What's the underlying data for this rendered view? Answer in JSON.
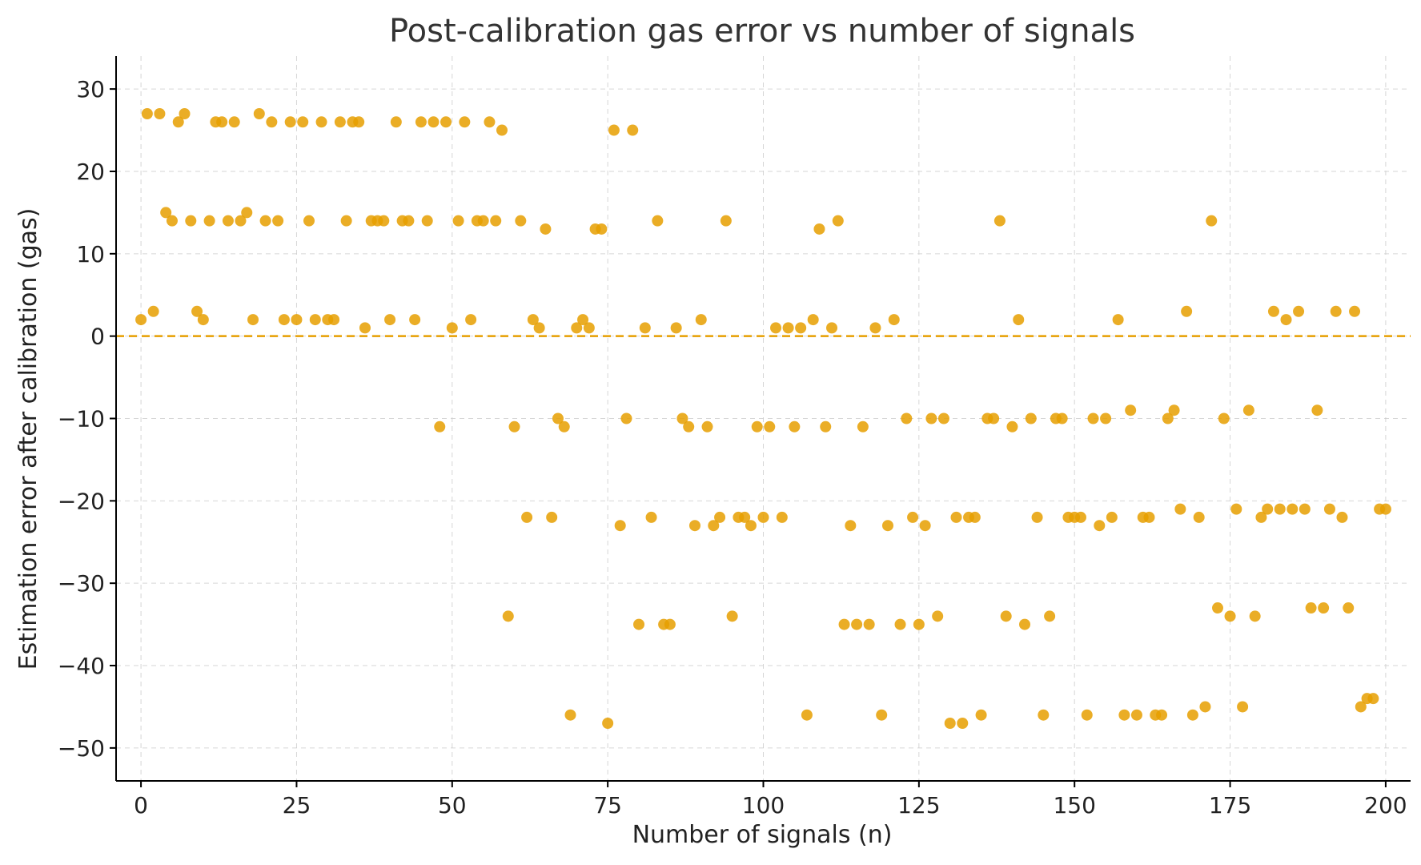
{
  "chart_data": {
    "type": "scatter",
    "title": "Post-calibration gas error vs number of signals",
    "xlabel": "Number of signals (n)",
    "ylabel": "Estimation error after calibration (gas)",
    "xlim": [
      -4,
      204
    ],
    "ylim": [
      -54,
      34
    ],
    "xticks": [
      0,
      25,
      50,
      75,
      100,
      125,
      150,
      175,
      200
    ],
    "yticks": [
      30,
      20,
      10,
      0,
      -10,
      -20,
      -30,
      -40,
      -50
    ],
    "grid": true,
    "reference_line": {
      "y": 0,
      "style": "dashed"
    },
    "colors": {
      "points": "#E69F00",
      "reference_line": "#E69F00"
    },
    "x": [
      0,
      1,
      2,
      3,
      4,
      5,
      6,
      7,
      8,
      9,
      10,
      11,
      12,
      13,
      14,
      15,
      16,
      17,
      18,
      19,
      20,
      21,
      22,
      23,
      24,
      25,
      26,
      27,
      28,
      29,
      30,
      31,
      32,
      33,
      34,
      35,
      36,
      37,
      38,
      39,
      40,
      41,
      42,
      43,
      44,
      45,
      46,
      47,
      48,
      49,
      50,
      51,
      52,
      53,
      54,
      55,
      56,
      57,
      58,
      59,
      60,
      61,
      62,
      63,
      64,
      65,
      66,
      67,
      68,
      69,
      70,
      71,
      72,
      73,
      74,
      75,
      76,
      77,
      78,
      79,
      80,
      81,
      82,
      83,
      84,
      85,
      86,
      87,
      88,
      89,
      90,
      91,
      92,
      93,
      94,
      95,
      96,
      97,
      98,
      99,
      100,
      101,
      102,
      103,
      104,
      105,
      106,
      107,
      108,
      109,
      110,
      111,
      112,
      113,
      114,
      115,
      116,
      117,
      118,
      119,
      120,
      121,
      122,
      123,
      124,
      125,
      126,
      127,
      128,
      129,
      130,
      131,
      132,
      133,
      134,
      135,
      136,
      137,
      138,
      139,
      140,
      141,
      142,
      143,
      144,
      145,
      146,
      147,
      148,
      149,
      150,
      151,
      152,
      153,
      154,
      155,
      156,
      157,
      158,
      159,
      160,
      161,
      162,
      163,
      164,
      165,
      166,
      167,
      168,
      169,
      170,
      171,
      172,
      173,
      174,
      175,
      176,
      177,
      178,
      179,
      180,
      181,
      182,
      183,
      184,
      185,
      186,
      187,
      188,
      189,
      190,
      191,
      192,
      193,
      194,
      195,
      196,
      197,
      198,
      199,
      200
    ],
    "y": [
      2,
      27,
      3,
      27,
      15,
      14,
      26,
      27,
      14,
      3,
      2,
      14,
      26,
      26,
      14,
      26,
      14,
      15,
      2,
      27,
      14,
      26,
      14,
      2,
      26,
      2,
      26,
      14,
      2,
      26,
      2,
      2,
      26,
      14,
      26,
      26,
      1,
      14,
      14,
      14,
      2,
      26,
      14,
      14,
      2,
      26,
      14,
      26,
      -11,
      26,
      1,
      14,
      26,
      2,
      14,
      14,
      26,
      14,
      25,
      -34,
      -11,
      14,
      -22,
      2,
      1,
      13,
      -22,
      -10,
      -11,
      -46,
      1,
      2,
      1,
      13,
      13,
      -47,
      25,
      -23,
      -10,
      25,
      -35,
      1,
      -22,
      14,
      -35,
      -35,
      1,
      -10,
      -11,
      -23,
      2,
      -11,
      -23,
      -22,
      14,
      -34,
      -22,
      -22,
      -23,
      -11,
      -22,
      -11,
      1,
      -22,
      1,
      -11,
      1,
      -46,
      2,
      13,
      -11,
      1,
      14,
      -35,
      -23,
      -35,
      -11,
      -35,
      1,
      -46,
      -23,
      2,
      -35,
      -10,
      -22,
      -35,
      -23,
      -10,
      -34,
      -10,
      -47,
      -22,
      -47,
      -22,
      -22,
      -46,
      -10,
      -10,
      14,
      -34,
      -11,
      2,
      -35,
      -10,
      -22,
      -46,
      -34,
      -10,
      -10,
      -22,
      -22,
      -22,
      -46,
      -10,
      -23,
      -10,
      -22,
      2,
      -46,
      -9,
      -46,
      -22,
      -22,
      -46,
      -46,
      -10,
      -9,
      -21,
      3,
      -46,
      -22,
      -45,
      14,
      -33,
      -10,
      -34,
      -21,
      -45,
      -9,
      -34,
      -22,
      -21,
      3,
      -21,
      2,
      -21,
      3,
      -21,
      -33,
      -9,
      -33,
      -21,
      3,
      -22,
      -33,
      3,
      -45,
      -44,
      -44,
      -21,
      -21
    ]
  }
}
